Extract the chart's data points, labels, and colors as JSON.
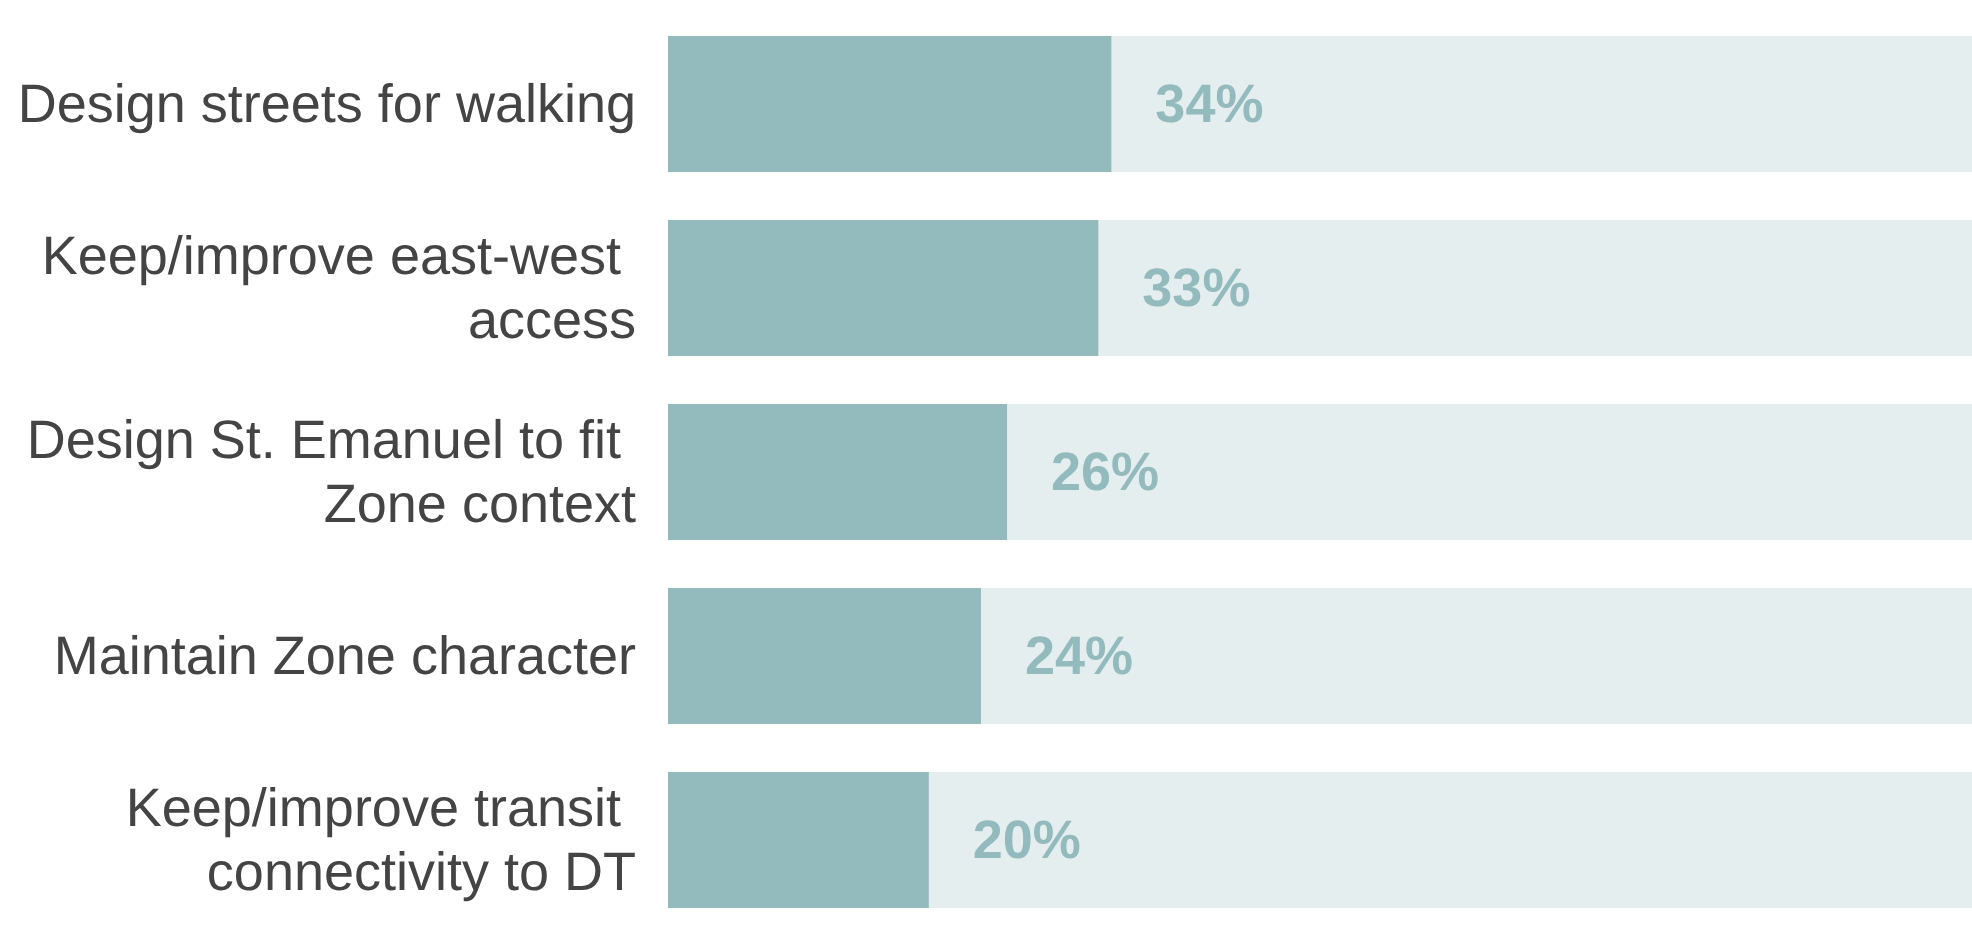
{
  "chart_data": {
    "type": "bar",
    "orientation": "horizontal",
    "categories": [
      "Design streets for walking",
      "Keep/improve east-west access",
      "Design St. Emanuel to fit Zone context",
      "Maintain Zone character",
      "Keep/improve transit connectivity to DT"
    ],
    "values": [
      34,
      33,
      26,
      24,
      20
    ],
    "value_labels": [
      "34%",
      "33%",
      "26%",
      "24%",
      "20%"
    ],
    "color": "#93babd",
    "xlim": [
      0,
      100
    ],
    "tick_labels": "y"
  }
}
